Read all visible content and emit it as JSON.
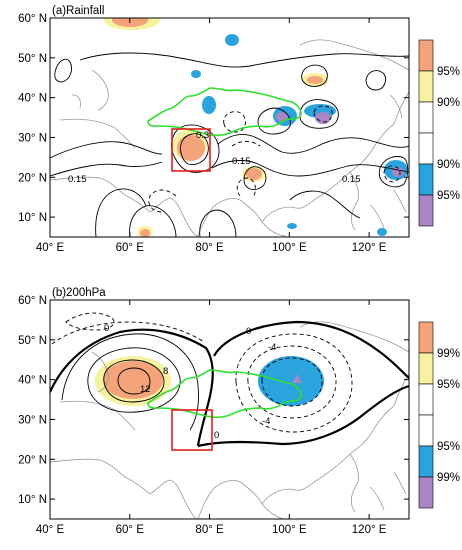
{
  "chart_data": [
    {
      "type": "heatmap",
      "title": "(a)Rainfall",
      "x_ticks": [
        "40° E",
        "60° E",
        "80° E",
        "100° E",
        "120° E"
      ],
      "y_ticks": [
        "60° N",
        "50° N",
        "40° N",
        "30° N",
        "20° N",
        "10° N"
      ],
      "xlim": [
        40,
        130
      ],
      "ylim": [
        5,
        60
      ],
      "colorbar": {
        "labels": [
          "95%",
          "90%",
          "90%",
          "95%"
        ],
        "colors": [
          "#F4A37A",
          "#F6F2A0",
          "#FFFFFF",
          "#FFFFFF",
          "#2BA3DD",
          "#A987C4"
        ]
      },
      "contour_labels": [
        "0.3",
        "0.15",
        "0.15",
        "0.15"
      ],
      "box": {
        "lon": [
          72,
          82
        ],
        "lat": [
          22,
          33
        ]
      },
      "significance_regions": [
        {
          "level": "positive-95",
          "lon": 77,
          "lat": 26
        },
        {
          "level": "positive-95",
          "lon": 60,
          "lat": 60
        },
        {
          "level": "positive-95",
          "lon": 107,
          "lat": 38
        },
        {
          "level": "positive-95",
          "lon": 91,
          "lat": 19
        },
        {
          "level": "negative-95",
          "lon": 86,
          "lat": 55
        },
        {
          "level": "negative-95",
          "lon": 77,
          "lat": 37
        },
        {
          "level": "negative-95",
          "lon": 110,
          "lat": 34
        },
        {
          "level": "negative-99",
          "lon": 95,
          "lat": 32
        },
        {
          "level": "negative-99",
          "lon": 114,
          "lat": 32
        },
        {
          "level": "negative-99",
          "lon": 127,
          "lat": 22
        }
      ]
    },
    {
      "type": "heatmap",
      "title": "(b)200hPa",
      "x_ticks": [
        "40° E",
        "60° E",
        "80° E",
        "100° E",
        "120° E"
      ],
      "y_ticks": [
        "60° N",
        "50° N",
        "40° N",
        "30° N",
        "20° N",
        "10° N"
      ],
      "xlim": [
        40,
        130
      ],
      "ylim": [
        5,
        60
      ],
      "colorbar": {
        "labels": [
          "99%",
          "95%",
          "95%",
          "99%"
        ],
        "colors": [
          "#F4A37A",
          "#F6F2A0",
          "#FFFFFF",
          "#FFFFFF",
          "#2BA3DD",
          "#A987C4"
        ]
      },
      "contour_labels": [
        "0",
        "0",
        "-4",
        "12",
        "8",
        "0",
        "-4"
      ],
      "box": {
        "lon": [
          72,
          82
        ],
        "lat": [
          22,
          33
        ]
      },
      "centers": [
        {
          "sign": "positive",
          "lon": 65,
          "lat": 41
        },
        {
          "sign": "negative",
          "lon": 101,
          "lat": 40
        }
      ]
    }
  ]
}
